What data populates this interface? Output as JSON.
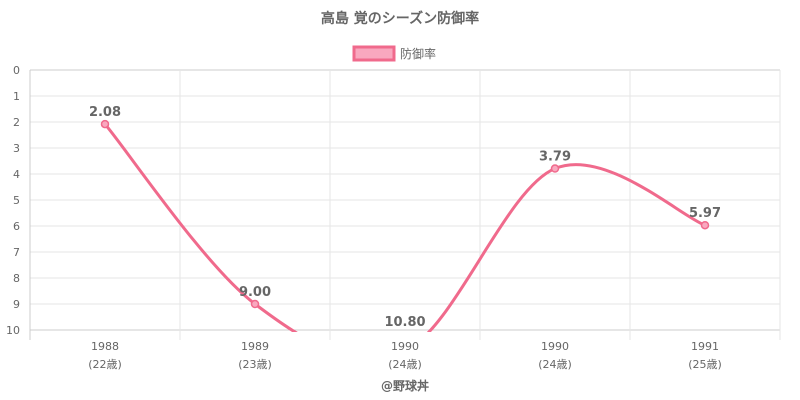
{
  "chart_data": {
    "type": "line",
    "title": "高島 覚のシーズン防御率",
    "legend": {
      "label": "防御率",
      "placement": "top-center"
    },
    "categories": [
      {
        "year": "1988",
        "age": "(22歳)"
      },
      {
        "year": "1989",
        "age": "(23歳)"
      },
      {
        "year": "1990",
        "age": "(24歳)"
      },
      {
        "year": "1990",
        "age": "(24歳)"
      },
      {
        "year": "1991",
        "age": "(25歳)"
      }
    ],
    "series": [
      {
        "name": "防御率",
        "values": [
          2.08,
          9.0,
          10.8,
          3.79,
          5.97
        ],
        "labels": [
          "2.08",
          "9.00",
          "10.80",
          "3.79",
          "5.97"
        ]
      }
    ],
    "y_axis": {
      "min": 0,
      "max": 10,
      "step": 1,
      "reversed": true,
      "ticks": [
        "0",
        "1",
        "2",
        "3",
        "4",
        "5",
        "6",
        "7",
        "8",
        "9",
        "10"
      ]
    },
    "grid": true,
    "colors": {
      "line": "#f06a8c",
      "fill": "#f9a8bf",
      "text": "#666666",
      "grid": "#e6e6e6"
    }
  },
  "footer": {
    "credit": "@野球丼"
  }
}
